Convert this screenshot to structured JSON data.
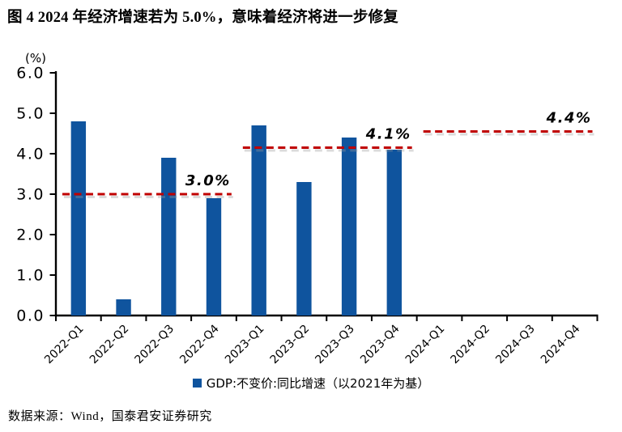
{
  "page": {
    "title": "图 4 2024 年经济增速若为 5.0%，意味着经济将进一步修复",
    "source_note": "数据来源：Wind，国泰君安证券研究"
  },
  "chart_data": {
    "type": "bar",
    "title": "",
    "unit_label": "(%)",
    "categories": [
      "2022-Q1",
      "2022-Q2",
      "2022-Q3",
      "2022-Q4",
      "2023-Q1",
      "2023-Q2",
      "2023-Q3",
      "2023-Q4",
      "2024-Q1",
      "2024-Q2",
      "2024-Q3",
      "2024-Q4"
    ],
    "series": [
      {
        "name": "GDP:不变价:同比增速（以2021年为基）",
        "values": [
          4.8,
          0.4,
          3.9,
          2.9,
          4.7,
          3.3,
          4.4,
          4.1,
          null,
          null,
          null,
          null
        ]
      }
    ],
    "ylim": [
      0,
      6
    ],
    "ytick_step": 1.0,
    "ytick_labels": [
      "0.0",
      "1.0",
      "2.0",
      "3.0",
      "4.0",
      "5.0",
      "6.0"
    ],
    "grid": false,
    "legend_position": "bottom",
    "bar_color": "#0F549E",
    "annotation_color": "#C00000",
    "annotations": [
      {
        "label": "3.0%",
        "value": 3.0,
        "line_level": 3.0,
        "start_category": "2022-Q1",
        "end_category": "2022-Q4"
      },
      {
        "label": "4.1%",
        "value": 4.1,
        "line_level": 4.15,
        "start_category": "2023-Q1",
        "end_category": "2023-Q4"
      },
      {
        "label": "4.4%",
        "value": 4.4,
        "line_level": 4.55,
        "start_category": "2024-Q1",
        "end_category": "2024-Q4"
      }
    ]
  }
}
